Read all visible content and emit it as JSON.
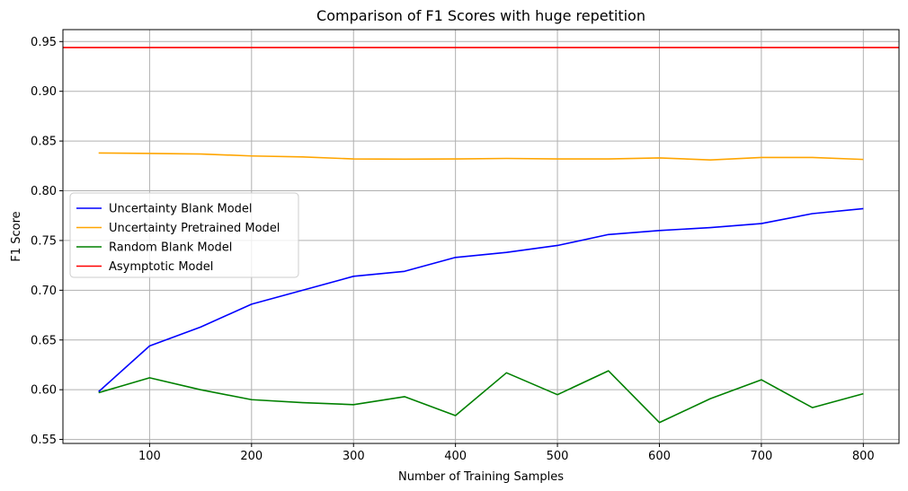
{
  "chart_data": {
    "type": "line",
    "title": "Comparison of F1 Scores with huge repetition",
    "xlabel": "Number of Training Samples",
    "ylabel": "F1 Score",
    "xlim": [
      15,
      835
    ],
    "ylim": [
      0.546,
      0.962
    ],
    "xticks": [
      100,
      200,
      300,
      400,
      500,
      600,
      700,
      800
    ],
    "yticks": [
      0.55,
      0.6,
      0.65,
      0.7,
      0.75,
      0.8,
      0.85,
      0.9,
      0.95
    ],
    "grid": true,
    "legend_position": "center-left",
    "x": [
      50,
      100,
      150,
      200,
      250,
      300,
      350,
      400,
      450,
      500,
      550,
      600,
      650,
      700,
      750,
      800
    ],
    "series": [
      {
        "name": "Uncertainty Blank Model",
        "color": "#0000ff",
        "values": [
          0.598,
          0.644,
          0.663,
          0.686,
          0.7,
          0.714,
          0.719,
          0.733,
          0.738,
          0.745,
          0.756,
          0.76,
          0.763,
          0.767,
          0.777,
          0.782
        ]
      },
      {
        "name": "Uncertainty Pretrained Model",
        "color": "#ffa500",
        "values": [
          0.838,
          0.8375,
          0.837,
          0.835,
          0.834,
          0.832,
          0.8318,
          0.832,
          0.8325,
          0.832,
          0.832,
          0.833,
          0.831,
          0.8335,
          0.8335,
          0.8315
        ]
      },
      {
        "name": "Random Blank Model",
        "color": "#008000",
        "values": [
          0.597,
          0.612,
          0.6,
          0.59,
          0.587,
          0.585,
          0.593,
          0.574,
          0.617,
          0.595,
          0.619,
          0.567,
          0.591,
          0.61,
          0.582,
          0.596
        ]
      },
      {
        "name": "Asymptotic Model",
        "color": "#ff0000",
        "constant": 0.944
      }
    ]
  }
}
